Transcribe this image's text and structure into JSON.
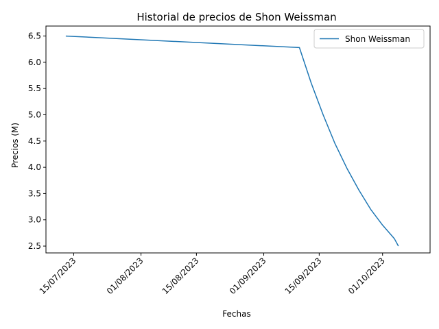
{
  "chart_data": {
    "type": "line",
    "title": "Historial de precios de Shon Weissman",
    "xlabel": "Fechas",
    "ylabel": "Precios (M)",
    "x_ticks": [
      "15/07/2023",
      "01/08/2023",
      "15/08/2023",
      "01/09/2023",
      "15/09/2023",
      "01/10/2023"
    ],
    "y_ticks": [
      "2.5",
      "3.0",
      "3.5",
      "4.0",
      "4.5",
      "5.0",
      "5.5",
      "6.0",
      "6.5"
    ],
    "ylim": [
      2.37,
      6.69
    ],
    "xlim": [
      "2023-07-08",
      "2023-10-13"
    ],
    "legend_position": "upper right",
    "series": [
      {
        "name": "Shon Weissman",
        "color": "#1f77b4",
        "points": [
          {
            "x": "2023-07-13",
            "y": 6.5
          },
          {
            "x": "2023-09-10",
            "y": 6.28
          },
          {
            "x": "2023-09-13",
            "y": 5.6
          },
          {
            "x": "2023-09-16",
            "y": 5.0
          },
          {
            "x": "2023-09-19",
            "y": 4.45
          },
          {
            "x": "2023-09-22",
            "y": 3.98
          },
          {
            "x": "2023-09-25",
            "y": 3.57
          },
          {
            "x": "2023-09-28",
            "y": 3.2
          },
          {
            "x": "2023-10-01",
            "y": 2.9
          },
          {
            "x": "2023-10-04",
            "y": 2.64
          },
          {
            "x": "2023-10-05",
            "y": 2.5
          }
        ]
      }
    ]
  }
}
